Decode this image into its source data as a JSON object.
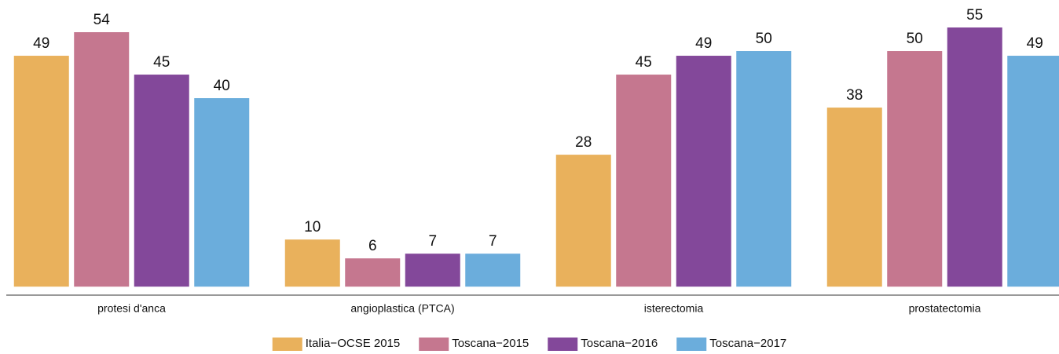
{
  "chart_data": {
    "type": "bar",
    "categories": [
      "protesi d'anca",
      "angioplastica (PTCA)",
      "isterectomia",
      "prostatectomia"
    ],
    "series": [
      {
        "name": "Italia−OCSE 2015",
        "color": "#E9B15C",
        "values": [
          49,
          10,
          28,
          38
        ]
      },
      {
        "name": "Toscana−2015",
        "color": "#C5778F",
        "values": [
          54,
          6,
          45,
          50
        ]
      },
      {
        "name": "Toscana−2016",
        "color": "#83489A",
        "values": [
          45,
          7,
          49,
          55
        ]
      },
      {
        "name": "Toscana−2017",
        "color": "#6BADDC",
        "values": [
          40,
          7,
          50,
          49
        ]
      }
    ],
    "ylim": [
      -1.8,
      57
    ],
    "legend": "bottom"
  }
}
